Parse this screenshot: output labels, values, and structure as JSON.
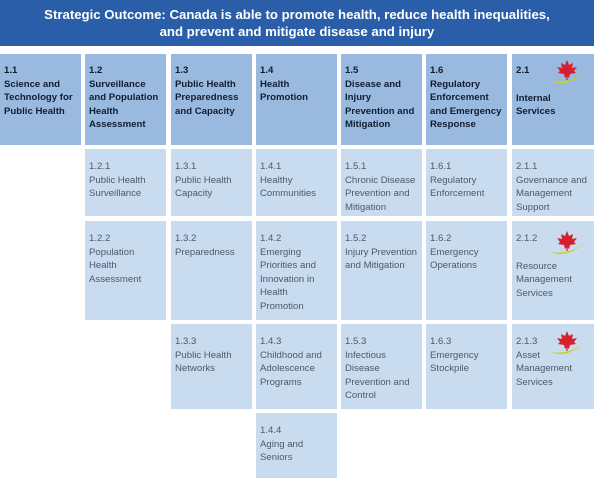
{
  "title": {
    "line1": "Strategic Outcome: Canada is able to promote health, reduce health inequalities,",
    "line2": "and prevent and mitigate disease and injury"
  },
  "colors": {
    "banner": "#2a5ea8",
    "header_cell": "#9ab9de",
    "item_cell": "#c8dbef",
    "logo_leaf": "#d4212d",
    "logo_swoosh": "#c9d41b"
  },
  "columns": [
    {
      "num": "1.1",
      "label": "Science and Technology for Public Health",
      "items": []
    },
    {
      "num": "1.2",
      "label": "Surveillance and Population Health Assessment",
      "items": [
        {
          "num": "1.2.1",
          "label": "Public Health Surveillance"
        },
        {
          "num": "1.2.2",
          "label": "Population Health Assessment"
        }
      ]
    },
    {
      "num": "1.3",
      "label": "Public Health Preparedness and Capacity",
      "items": [
        {
          "num": "1.3.1",
          "label": "Public Health Capacity"
        },
        {
          "num": "1.3.2",
          "label": "Preparedness"
        },
        {
          "num": "1.3.3",
          "label": "Public Health Networks"
        }
      ]
    },
    {
      "num": "1.4",
      "label": "Health Promotion",
      "items": [
        {
          "num": "1.4.1",
          "label": "Healthy Communities"
        },
        {
          "num": "1.4.2",
          "label": "Emerging Priorities and Innovation in Health Promotion"
        },
        {
          "num": "1.4.3",
          "label": "Childhood and Adolescence Programs"
        },
        {
          "num": "1.4.4",
          "label": "Aging and Seniors"
        }
      ]
    },
    {
      "num": "1.5",
      "label": "Disease and Injury Prevention and Mitigation",
      "items": [
        {
          "num": "1.5.1",
          "label": "Chronic Disease Prevention and Mitigation"
        },
        {
          "num": "1.5.2",
          "label": "Injury Prevention and Mitigation"
        },
        {
          "num": "1.5.3",
          "label": "Infectious Disease Prevention and Control"
        }
      ]
    },
    {
      "num": "1.6",
      "label": "Regulatory Enforcement and Emergency Response",
      "items": [
        {
          "num": "1.6.1",
          "label": "Regulatory Enforcement"
        },
        {
          "num": "1.6.2",
          "label": "Emergency Operations"
        },
        {
          "num": "1.6.3",
          "label": "Emergency Stockpile"
        }
      ]
    },
    {
      "num": "2.1",
      "label": "Internal Services",
      "items": [
        {
          "num": "2.1.1",
          "label": "Governance and Management Support"
        },
        {
          "num": "2.1.2",
          "label": "Resource Management Services"
        },
        {
          "num": "2.1.3",
          "label": "Asset Management Services"
        }
      ]
    }
  ]
}
